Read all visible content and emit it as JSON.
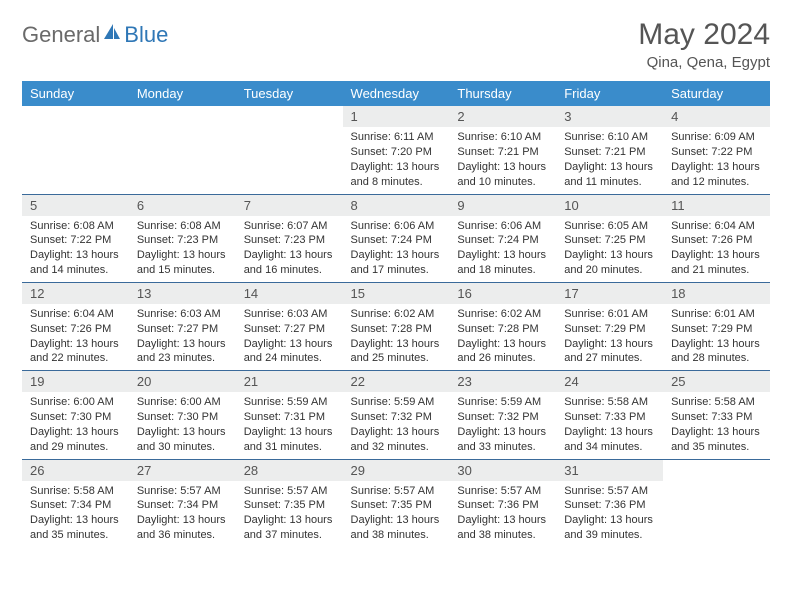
{
  "brand": {
    "part1": "General",
    "part2": "Blue"
  },
  "colors": {
    "header_bg": "#3a8ccb",
    "header_text": "#ffffff",
    "daynum_bg": "#eceded",
    "border": "#3a6a9a",
    "brand_gray": "#6a6a6a",
    "brand_blue": "#2f77b6"
  },
  "title": {
    "month": "May 2024",
    "location": "Qina, Qena, Egypt"
  },
  "weekdays": [
    "Sunday",
    "Monday",
    "Tuesday",
    "Wednesday",
    "Thursday",
    "Friday",
    "Saturday"
  ],
  "weeks": [
    [
      {
        "n": "",
        "sr": "",
        "ss": "",
        "dl": ""
      },
      {
        "n": "",
        "sr": "",
        "ss": "",
        "dl": ""
      },
      {
        "n": "",
        "sr": "",
        "ss": "",
        "dl": ""
      },
      {
        "n": "1",
        "sr": "6:11 AM",
        "ss": "7:20 PM",
        "dl": "13 hours and 8 minutes."
      },
      {
        "n": "2",
        "sr": "6:10 AM",
        "ss": "7:21 PM",
        "dl": "13 hours and 10 minutes."
      },
      {
        "n": "3",
        "sr": "6:10 AM",
        "ss": "7:21 PM",
        "dl": "13 hours and 11 minutes."
      },
      {
        "n": "4",
        "sr": "6:09 AM",
        "ss": "7:22 PM",
        "dl": "13 hours and 12 minutes."
      }
    ],
    [
      {
        "n": "5",
        "sr": "6:08 AM",
        "ss": "7:22 PM",
        "dl": "13 hours and 14 minutes."
      },
      {
        "n": "6",
        "sr": "6:08 AM",
        "ss": "7:23 PM",
        "dl": "13 hours and 15 minutes."
      },
      {
        "n": "7",
        "sr": "6:07 AM",
        "ss": "7:23 PM",
        "dl": "13 hours and 16 minutes."
      },
      {
        "n": "8",
        "sr": "6:06 AM",
        "ss": "7:24 PM",
        "dl": "13 hours and 17 minutes."
      },
      {
        "n": "9",
        "sr": "6:06 AM",
        "ss": "7:24 PM",
        "dl": "13 hours and 18 minutes."
      },
      {
        "n": "10",
        "sr": "6:05 AM",
        "ss": "7:25 PM",
        "dl": "13 hours and 20 minutes."
      },
      {
        "n": "11",
        "sr": "6:04 AM",
        "ss": "7:26 PM",
        "dl": "13 hours and 21 minutes."
      }
    ],
    [
      {
        "n": "12",
        "sr": "6:04 AM",
        "ss": "7:26 PM",
        "dl": "13 hours and 22 minutes."
      },
      {
        "n": "13",
        "sr": "6:03 AM",
        "ss": "7:27 PM",
        "dl": "13 hours and 23 minutes."
      },
      {
        "n": "14",
        "sr": "6:03 AM",
        "ss": "7:27 PM",
        "dl": "13 hours and 24 minutes."
      },
      {
        "n": "15",
        "sr": "6:02 AM",
        "ss": "7:28 PM",
        "dl": "13 hours and 25 minutes."
      },
      {
        "n": "16",
        "sr": "6:02 AM",
        "ss": "7:28 PM",
        "dl": "13 hours and 26 minutes."
      },
      {
        "n": "17",
        "sr": "6:01 AM",
        "ss": "7:29 PM",
        "dl": "13 hours and 27 minutes."
      },
      {
        "n": "18",
        "sr": "6:01 AM",
        "ss": "7:29 PM",
        "dl": "13 hours and 28 minutes."
      }
    ],
    [
      {
        "n": "19",
        "sr": "6:00 AM",
        "ss": "7:30 PM",
        "dl": "13 hours and 29 minutes."
      },
      {
        "n": "20",
        "sr": "6:00 AM",
        "ss": "7:30 PM",
        "dl": "13 hours and 30 minutes."
      },
      {
        "n": "21",
        "sr": "5:59 AM",
        "ss": "7:31 PM",
        "dl": "13 hours and 31 minutes."
      },
      {
        "n": "22",
        "sr": "5:59 AM",
        "ss": "7:32 PM",
        "dl": "13 hours and 32 minutes."
      },
      {
        "n": "23",
        "sr": "5:59 AM",
        "ss": "7:32 PM",
        "dl": "13 hours and 33 minutes."
      },
      {
        "n": "24",
        "sr": "5:58 AM",
        "ss": "7:33 PM",
        "dl": "13 hours and 34 minutes."
      },
      {
        "n": "25",
        "sr": "5:58 AM",
        "ss": "7:33 PM",
        "dl": "13 hours and 35 minutes."
      }
    ],
    [
      {
        "n": "26",
        "sr": "5:58 AM",
        "ss": "7:34 PM",
        "dl": "13 hours and 35 minutes."
      },
      {
        "n": "27",
        "sr": "5:57 AM",
        "ss": "7:34 PM",
        "dl": "13 hours and 36 minutes."
      },
      {
        "n": "28",
        "sr": "5:57 AM",
        "ss": "7:35 PM",
        "dl": "13 hours and 37 minutes."
      },
      {
        "n": "29",
        "sr": "5:57 AM",
        "ss": "7:35 PM",
        "dl": "13 hours and 38 minutes."
      },
      {
        "n": "30",
        "sr": "5:57 AM",
        "ss": "7:36 PM",
        "dl": "13 hours and 38 minutes."
      },
      {
        "n": "31",
        "sr": "5:57 AM",
        "ss": "7:36 PM",
        "dl": "13 hours and 39 minutes."
      },
      {
        "n": "",
        "sr": "",
        "ss": "",
        "dl": ""
      }
    ]
  ],
  "labels": {
    "sunrise": "Sunrise: ",
    "sunset": "Sunset: ",
    "daylight": "Daylight: "
  }
}
